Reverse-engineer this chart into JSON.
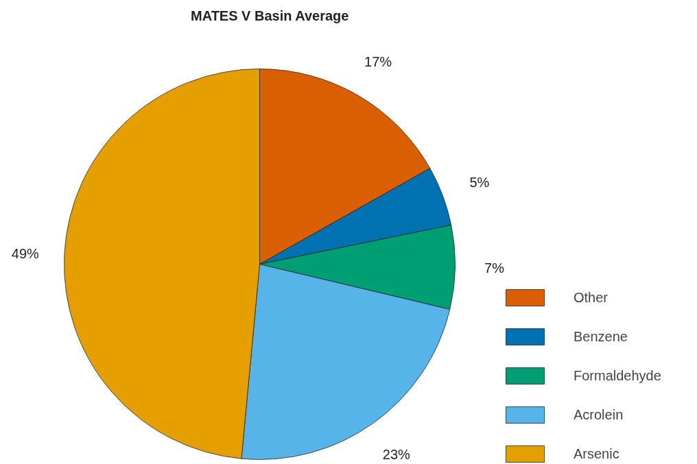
{
  "chart_data": {
    "type": "pie",
    "title": "MATES V Basin Average",
    "categories": [
      "Other",
      "Benzene",
      "Formaldehyde",
      "Acrolein",
      "Arsenic"
    ],
    "values": [
      17,
      5,
      7,
      23,
      49
    ],
    "colors": [
      "#d95f02",
      "#0072b2",
      "#009e73",
      "#56b4e9",
      "#e69f00"
    ],
    "value_labels": [
      "17%",
      "5%",
      "7%",
      "23%",
      "49%"
    ],
    "legend": "right"
  }
}
